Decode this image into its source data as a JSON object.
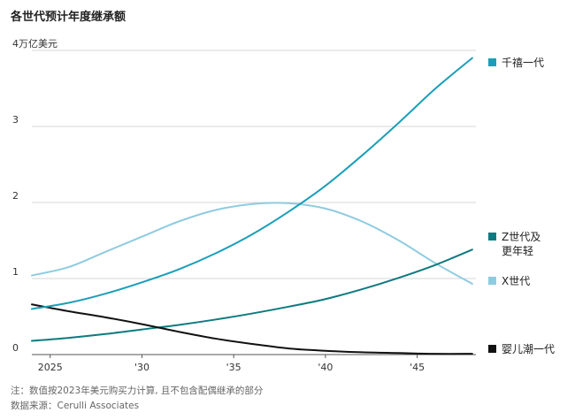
{
  "chart_data": {
    "type": "line",
    "title": "各世代预计年度继承额",
    "ylabel": "",
    "y_unit_label": "4万亿美元",
    "xlim": [
      2024,
      2048.2
    ],
    "ylim": [
      0,
      4
    ],
    "y_ticks": [
      {
        "value": 0,
        "label": "0"
      },
      {
        "value": 1,
        "label": "1"
      },
      {
        "value": 2,
        "label": "2"
      },
      {
        "value": 3,
        "label": "3"
      },
      {
        "value": 4,
        "label": "4"
      }
    ],
    "x_ticks": [
      {
        "value": 2025,
        "label": "2025"
      },
      {
        "value": 2030,
        "label": "'30"
      },
      {
        "value": 2035,
        "label": "'35"
      },
      {
        "value": 2040,
        "label": "'40"
      },
      {
        "value": 2045,
        "label": "'45"
      }
    ],
    "x": [
      2024,
      2026,
      2028,
      2030,
      2032,
      2034,
      2036,
      2038,
      2040,
      2042,
      2044,
      2046,
      2048
    ],
    "series": [
      {
        "name": "千禧一代",
        "color": "#1a9fb8",
        "values": [
          0.6,
          0.68,
          0.8,
          0.95,
          1.12,
          1.33,
          1.58,
          1.88,
          2.22,
          2.62,
          3.05,
          3.5,
          3.9
        ]
      },
      {
        "name": "Z世代及更年轻",
        "color": "#0e7a80",
        "values": [
          0.18,
          0.22,
          0.27,
          0.33,
          0.39,
          0.46,
          0.54,
          0.63,
          0.73,
          0.86,
          1.01,
          1.18,
          1.38
        ]
      },
      {
        "name": "X世代",
        "color": "#8fcbe0",
        "values": [
          1.04,
          1.15,
          1.35,
          1.55,
          1.75,
          1.9,
          1.98,
          1.99,
          1.92,
          1.75,
          1.5,
          1.2,
          0.93
        ]
      },
      {
        "name": "婴儿潮一代",
        "color": "#111111",
        "values": [
          0.66,
          0.57,
          0.49,
          0.4,
          0.3,
          0.21,
          0.14,
          0.08,
          0.05,
          0.03,
          0.02,
          0.01,
          0.01
        ]
      }
    ],
    "legend": [
      {
        "lines": [
          "千禧一代"
        ],
        "color": "#1a9fb8"
      },
      {
        "lines": [
          "Z世代及",
          "更年轻"
        ],
        "color": "#0e7a80"
      },
      {
        "lines": [
          "X世代"
        ],
        "color": "#8fcbe0"
      },
      {
        "lines": [
          "婴儿潮一代"
        ],
        "color": "#111111"
      }
    ],
    "grid": true,
    "legend_placement": "right"
  },
  "notes": {
    "line1": "注：数值按2023年美元购买力计算, 且不包含配偶继承的部分",
    "line2": "数据来源：Cerulli Associates"
  }
}
